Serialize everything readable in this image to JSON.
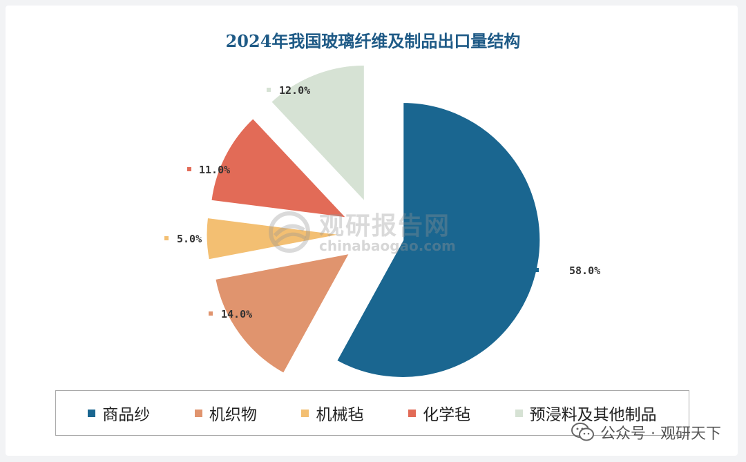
{
  "chart_data": {
    "type": "pie",
    "title": "2024年我国玻璃纤维及制品出口量结构",
    "categories": [
      "商品纱",
      "机织物",
      "机械毡",
      "化学毡",
      "预浸料及其他制品"
    ],
    "values": [
      58.0,
      14.0,
      5.0,
      11.0,
      12.0
    ],
    "data_labels": [
      "58.0%",
      "14.0%",
      "5.0%",
      "11.0%",
      "12.0%"
    ],
    "colors": [
      "#1a6690",
      "#e0946e",
      "#f3bf72",
      "#e26b57",
      "#d6e2d4"
    ],
    "exploded": true,
    "legend_position": "bottom"
  },
  "watermark": {
    "title": "观研报告网",
    "domain": "chinabaogao.com"
  },
  "footer": {
    "text": "公众号 · 观研天下",
    "icon": "wechat-icon"
  }
}
